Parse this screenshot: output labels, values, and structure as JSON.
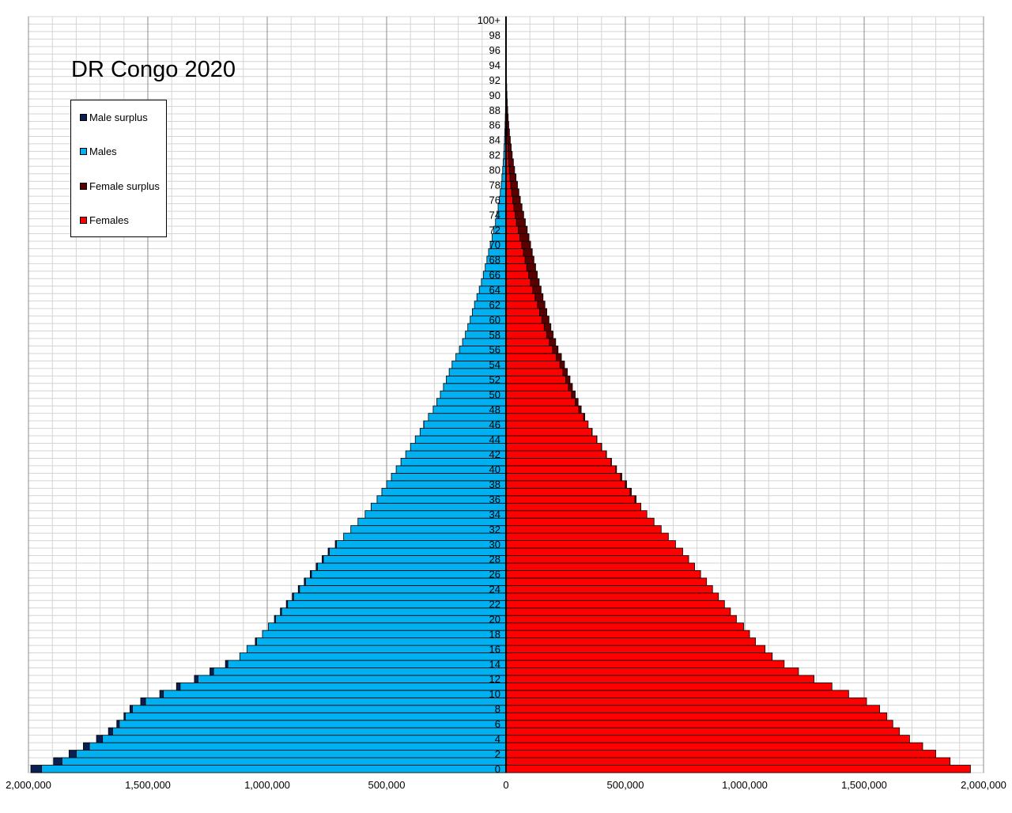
{
  "chart_data": {
    "type": "bar",
    "orientation": "horizontal",
    "title": "DR Congo 2020",
    "xlim": [
      -2000000,
      2000000
    ],
    "x_ticks": [
      -2000000,
      -1500000,
      -1000000,
      -500000,
      0,
      500000,
      1000000,
      1500000,
      2000000
    ],
    "x_tick_labels": [
      "2,000,000",
      "1,500,000",
      "1,000,000",
      "500,000",
      "0",
      "500,000",
      "1,000,000",
      "1,500,000",
      "2,000,000"
    ],
    "y_tick_labels": [
      "0",
      "2",
      "4",
      "6",
      "8",
      "10",
      "12",
      "14",
      "16",
      "18",
      "20",
      "22",
      "24",
      "26",
      "28",
      "30",
      "32",
      "34",
      "36",
      "38",
      "40",
      "42",
      "44",
      "46",
      "48",
      "50",
      "52",
      "54",
      "56",
      "58",
      "60",
      "62",
      "64",
      "66",
      "68",
      "70",
      "72",
      "74",
      "76",
      "78",
      "80",
      "82",
      "84",
      "86",
      "88",
      "90",
      "92",
      "94",
      "96",
      "98",
      "100+"
    ],
    "ages": [
      "0",
      "1",
      "2",
      "3",
      "4",
      "5",
      "6",
      "7",
      "8",
      "9",
      "10",
      "11",
      "12",
      "13",
      "14",
      "15",
      "16",
      "17",
      "18",
      "19",
      "20",
      "21",
      "22",
      "23",
      "24",
      "25",
      "26",
      "27",
      "28",
      "29",
      "30",
      "31",
      "32",
      "33",
      "34",
      "35",
      "36",
      "37",
      "38",
      "39",
      "40",
      "41",
      "42",
      "43",
      "44",
      "45",
      "46",
      "47",
      "48",
      "49",
      "50",
      "51",
      "52",
      "53",
      "54",
      "55",
      "56",
      "57",
      "58",
      "59",
      "60",
      "61",
      "62",
      "63",
      "64",
      "65",
      "66",
      "67",
      "68",
      "69",
      "70",
      "71",
      "72",
      "73",
      "74",
      "75",
      "76",
      "77",
      "78",
      "79",
      "80",
      "81",
      "82",
      "83",
      "84",
      "85",
      "86",
      "87",
      "88",
      "89",
      "90",
      "91",
      "92",
      "93",
      "94",
      "95",
      "96",
      "97",
      "98",
      "99",
      "100+"
    ],
    "series": [
      {
        "name": "Males",
        "values": [
          1990000,
          1895000,
          1830000,
          1770000,
          1715000,
          1665000,
          1630000,
          1600000,
          1575000,
          1530000,
          1450000,
          1380000,
          1305000,
          1240000,
          1175000,
          1115000,
          1085000,
          1050000,
          1020000,
          995000,
          970000,
          945000,
          920000,
          895000,
          870000,
          845000,
          820000,
          795000,
          770000,
          745000,
          715000,
          680000,
          650000,
          620000,
          590000,
          565000,
          540000,
          520000,
          500000,
          480000,
          460000,
          440000,
          420000,
          400000,
          380000,
          360000,
          345000,
          325000,
          305000,
          290000,
          275000,
          262000,
          250000,
          238000,
          226000,
          210000,
          195000,
          182000,
          170000,
          160000,
          150000,
          141000,
          132000,
          122000,
          112000,
          103000,
          95000,
          87000,
          80000,
          73000,
          66000,
          58000,
          51000,
          44000,
          38000,
          33000,
          28000,
          24000,
          20000,
          17000,
          14000,
          11500,
          9500,
          7800,
          6300,
          5000,
          3900,
          3000,
          2300,
          1700,
          1200,
          900,
          650,
          450,
          300,
          200,
          140,
          90,
          60,
          40,
          60
        ]
      },
      {
        "name": "Females",
        "values": [
          1945000,
          1860000,
          1800000,
          1745000,
          1690000,
          1648000,
          1620000,
          1595000,
          1565000,
          1510000,
          1435000,
          1365000,
          1290000,
          1225000,
          1165000,
          1115000,
          1085000,
          1045000,
          1020000,
          995000,
          965000,
          940000,
          915000,
          890000,
          865000,
          840000,
          815000,
          790000,
          765000,
          740000,
          710000,
          680000,
          650000,
          620000,
          590000,
          565000,
          545000,
          525000,
          505000,
          485000,
          463000,
          442000,
          421000,
          401000,
          381000,
          361000,
          344000,
          330000,
          315000,
          302000,
          290000,
          278000,
          268000,
          257000,
          245000,
          232000,
          218000,
          208000,
          197000,
          188000,
          180000,
          171000,
          163000,
          155000,
          147000,
          139000,
          131000,
          124000,
          117000,
          110000,
          103000,
          96000,
          89000,
          81000,
          74000,
          67000,
          60000,
          54000,
          48000,
          42000,
          36000,
          31000,
          26000,
          22000,
          18000,
          14500,
          11500,
          9000,
          7000,
          5400,
          4000,
          3000,
          2200,
          1600,
          1100,
          800,
          550,
          370,
          250,
          160,
          220
        ]
      }
    ],
    "legend": {
      "position": "top-left",
      "entries": [
        {
          "name": "Male surplus",
          "color": "#0a1f52"
        },
        {
          "name": "Males",
          "color": "#00b0f0"
        },
        {
          "name": "Female surplus",
          "color": "#5a0000"
        },
        {
          "name": "Females",
          "color": "#ff0000"
        }
      ]
    },
    "grid": true
  }
}
